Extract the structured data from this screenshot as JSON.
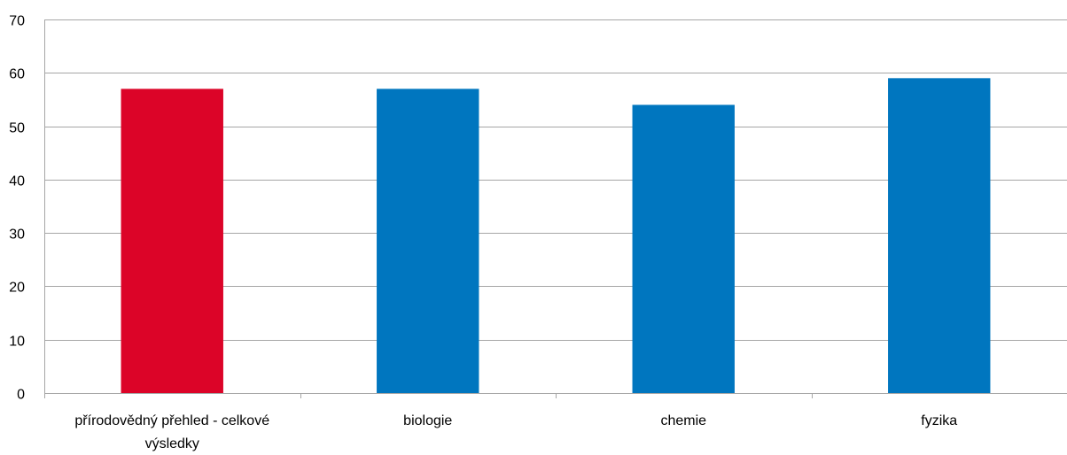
{
  "chart_data": {
    "type": "bar",
    "title": "",
    "xlabel": "",
    "ylabel": "",
    "ylim": [
      0,
      70
    ],
    "yticks": [
      0,
      10,
      20,
      30,
      40,
      50,
      60,
      70
    ],
    "grid": true,
    "legend": "none",
    "categories": [
      [
        "přírodovědný přehled - celkové",
        "výsledky"
      ],
      [
        "biologie"
      ],
      [
        "chemie"
      ],
      [
        "fyzika"
      ]
    ],
    "values": [
      57,
      57,
      54,
      59
    ],
    "colors": [
      "#dc0428",
      "#0076bf",
      "#0076bf",
      "#0076bf"
    ]
  }
}
